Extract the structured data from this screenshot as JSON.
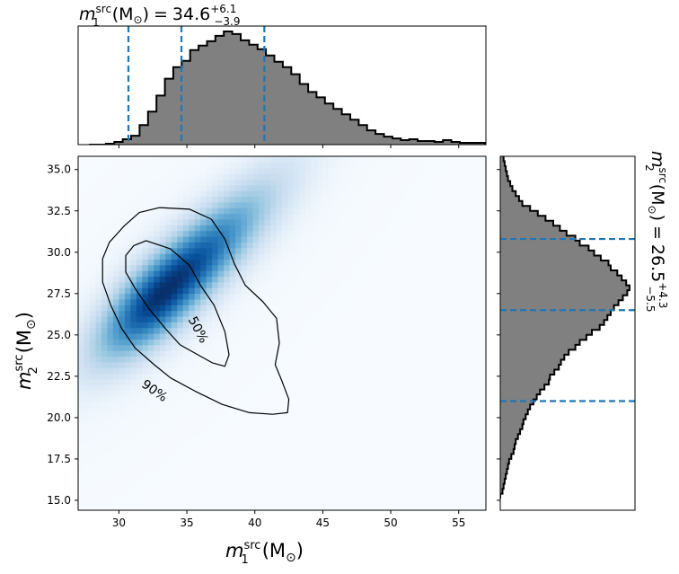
{
  "chart_data": [
    {
      "type": "heatmap",
      "panel": "joint",
      "x_quantity": "m1_src",
      "y_quantity": "m2_src",
      "xlabel": {
        "var": "m",
        "sup": "src",
        "sub": "1",
        "unit": "(M",
        "unit_sub": "⊙",
        "unit_close": ")"
      },
      "ylabel": {
        "var": "m",
        "sup": "src",
        "sub": "2",
        "unit": "(M",
        "unit_sub": "⊙",
        "unit_close": ")"
      },
      "xlim": [
        27.0,
        57.0
      ],
      "ylim": [
        14.4,
        35.8
      ],
      "xticks": [
        30,
        35,
        40,
        45,
        50,
        55
      ],
      "xtick_labels": [
        "30",
        "35",
        "40",
        "45",
        "50",
        "55"
      ],
      "yticks": [
        15.0,
        17.5,
        20.0,
        22.5,
        25.0,
        27.5,
        30.0,
        32.5,
        35.0
      ],
      "ytick_labels": [
        "15.0",
        "17.5",
        "20.0",
        "22.5",
        "25.0",
        "27.5",
        "30.0",
        "32.5",
        "35.0"
      ],
      "colormap": "Blues",
      "density_peak": {
        "m1": 33.3,
        "m2": 27.6
      },
      "contours": [
        {
          "level": "50%",
          "label": "50%",
          "label_at": [
            35.8,
            25.3
          ],
          "path": [
            [
              32.0,
              30.7
            ],
            [
              33.8,
              30.2
            ],
            [
              35.2,
              29.2
            ],
            [
              36.0,
              28.0
            ],
            [
              37.0,
              26.8
            ],
            [
              37.8,
              25.2
            ],
            [
              38.1,
              23.8
            ],
            [
              37.8,
              23.1
            ],
            [
              36.9,
              23.3
            ],
            [
              35.8,
              23.8
            ],
            [
              34.5,
              24.4
            ],
            [
              33.4,
              25.4
            ],
            [
              32.2,
              26.6
            ],
            [
              31.2,
              27.8
            ],
            [
              30.5,
              28.8
            ],
            [
              30.5,
              29.8
            ],
            [
              31.1,
              30.4
            ]
          ]
        },
        {
          "level": "90%",
          "label": "90%",
          "label_at": [
            32.6,
            21.6
          ],
          "path": [
            [
              31.5,
              32.4
            ],
            [
              33.0,
              32.7
            ],
            [
              35.2,
              32.6
            ],
            [
              36.8,
              32.0
            ],
            [
              37.8,
              30.8
            ],
            [
              38.5,
              29.3
            ],
            [
              39.3,
              28.0
            ],
            [
              40.6,
              27.0
            ],
            [
              41.6,
              26.0
            ],
            [
              41.8,
              24.5
            ],
            [
              41.5,
              23.2
            ],
            [
              42.0,
              22.2
            ],
            [
              42.5,
              21.1
            ],
            [
              42.4,
              20.3
            ],
            [
              41.3,
              20.2
            ],
            [
              39.6,
              20.3
            ],
            [
              37.6,
              20.8
            ],
            [
              35.6,
              21.6
            ],
            [
              33.8,
              22.4
            ],
            [
              32.6,
              23.2
            ],
            [
              31.2,
              24.2
            ],
            [
              30.2,
              25.4
            ],
            [
              29.4,
              26.8
            ],
            [
              28.8,
              28.2
            ],
            [
              28.8,
              29.6
            ],
            [
              29.3,
              30.6
            ],
            [
              30.4,
              31.6
            ]
          ]
        }
      ]
    },
    {
      "type": "bar",
      "panel": "top-marginal",
      "quantity": "m1_src",
      "title": {
        "var": "m",
        "sup": "src",
        "sub": "1",
        "unit": "(M",
        "unit_sub": "⊙",
        "unit_close": ")",
        "equals": "=",
        "median": "34.6",
        "plus": "+6.1",
        "minus": "−3.9"
      },
      "bin_width": 0.62,
      "bin_start": 27.8,
      "values": [
        0,
        0,
        1,
        3,
        6,
        10,
        22,
        37,
        55,
        74,
        87,
        94,
        106,
        111,
        116,
        122,
        127,
        124,
        117,
        112,
        107,
        100,
        93,
        87,
        79,
        68,
        59,
        53,
        46,
        40,
        34,
        28,
        22,
        16,
        12,
        9,
        7,
        5,
        6,
        4,
        4,
        3,
        5,
        3,
        2,
        2,
        2,
        1,
        1,
        1,
        1,
        1,
        1,
        0,
        0,
        0,
        0,
        0,
        0,
        0,
        0,
        0,
        0,
        0,
        0,
        0,
        0,
        0,
        0
      ],
      "ylim": [
        0,
        133
      ],
      "quantile_lines": [
        30.7,
        34.6,
        40.7
      ]
    },
    {
      "type": "bar",
      "panel": "right-marginal",
      "orientation": "horizontal",
      "quantity": "m2_src",
      "title": {
        "var": "m",
        "sup": "src",
        "sub": "2",
        "unit": "(M",
        "unit_sub": "⊙",
        "unit_close": ")",
        "equals": "=",
        "median": "26.5",
        "plus": "+4.3",
        "minus": "−5.5"
      },
      "bin_width": 0.3,
      "bin_start": 15.1,
      "values": [
        0,
        2,
        3,
        4,
        5,
        6,
        7,
        8,
        10,
        12,
        13,
        14,
        16,
        18,
        20,
        21,
        23,
        25,
        27,
        30,
        33,
        36,
        40,
        44,
        45,
        49,
        53,
        55,
        58,
        62,
        68,
        72,
        78,
        83,
        90,
        94,
        97,
        100,
        103,
        107,
        111,
        115,
        117,
        114,
        110,
        106,
        100,
        98,
        91,
        85,
        80,
        72,
        68,
        60,
        54,
        48,
        41,
        34,
        27,
        20,
        17,
        14,
        11,
        9,
        7,
        6,
        5,
        4,
        3,
        3,
        2,
        2,
        1,
        1,
        0
      ],
      "xlim": [
        0,
        122
      ],
      "quantile_lines": [
        21.0,
        26.5,
        30.8
      ]
    }
  ],
  "colors": {
    "hist_fill": "#808080",
    "hist_edge": "#000000",
    "quantile_line": "#1f77b4",
    "contour": "#000000",
    "cmap_low": "#f7fbff",
    "cmap_high": "#08306b"
  }
}
